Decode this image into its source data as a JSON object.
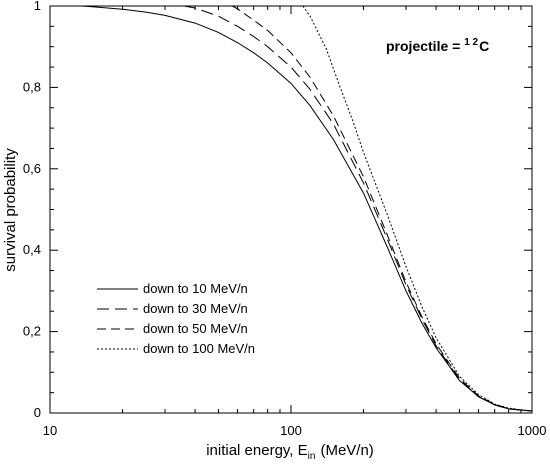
{
  "chart_data": {
    "type": "line",
    "xscale": "log",
    "xlim": [
      10,
      1000
    ],
    "ylim": [
      0,
      1
    ],
    "xlabel": "initial energy, E",
    "xlabel_sub": "in",
    "xlabel_unit": "(MeV/n)",
    "ylabel": "survival probability",
    "xticks": [
      10,
      100,
      1000
    ],
    "xtick_labels": [
      "10",
      "100",
      "1000"
    ],
    "yticks": [
      0,
      0.2,
      0.4,
      0.6,
      0.8,
      1
    ],
    "ytick_labels": [
      "0",
      "0,2",
      "0,4",
      "0,6",
      "0,8",
      "1"
    ],
    "grid": false,
    "legend_position": "bottom-left",
    "annotation": {
      "prefix": "projectile = ",
      "sup": "1 2",
      "element": "C"
    },
    "series": [
      {
        "name": "down to 10 MeV/n",
        "style": "solid",
        "x": [
          13.5,
          15,
          20,
          25,
          30,
          40,
          50,
          60,
          70,
          80,
          100,
          120,
          150,
          200,
          250,
          300,
          350,
          400,
          500,
          600,
          700,
          800,
          900,
          1000
        ],
        "y": [
          1.0,
          0.998,
          0.992,
          0.985,
          0.977,
          0.958,
          0.935,
          0.91,
          0.885,
          0.86,
          0.81,
          0.755,
          0.672,
          0.54,
          0.41,
          0.3,
          0.22,
          0.16,
          0.08,
          0.04,
          0.02,
          0.01,
          0.007,
          0.005
        ]
      },
      {
        "name": "down to 30 MeV/n",
        "style": "longdash",
        "x": [
          36,
          40,
          50,
          60,
          70,
          80,
          100,
          120,
          150,
          200,
          250,
          300,
          350,
          400,
          500,
          600,
          700,
          800,
          900,
          1000
        ],
        "y": [
          1.0,
          0.995,
          0.975,
          0.95,
          0.925,
          0.9,
          0.85,
          0.795,
          0.71,
          0.565,
          0.43,
          0.315,
          0.23,
          0.165,
          0.082,
          0.04,
          0.02,
          0.01,
          0.007,
          0.005
        ]
      },
      {
        "name": "down to 50 MeV/n",
        "style": "dash",
        "x": [
          57,
          60,
          70,
          80,
          100,
          120,
          150,
          200,
          250,
          300,
          350,
          400,
          500,
          600,
          700,
          800,
          900,
          1000
        ],
        "y": [
          1.0,
          0.993,
          0.965,
          0.94,
          0.885,
          0.825,
          0.73,
          0.58,
          0.44,
          0.322,
          0.235,
          0.17,
          0.085,
          0.042,
          0.021,
          0.011,
          0.007,
          0.005
        ]
      },
      {
        "name": "down to 100 MeV/n",
        "style": "dotted",
        "x": [
          112,
          120,
          140,
          160,
          180,
          200,
          250,
          300,
          350,
          400,
          500,
          600,
          700,
          800,
          900,
          1000
        ],
        "y": [
          1.0,
          0.975,
          0.895,
          0.8,
          0.72,
          0.64,
          0.49,
          0.36,
          0.26,
          0.185,
          0.09,
          0.045,
          0.022,
          0.012,
          0.008,
          0.005
        ]
      }
    ]
  }
}
